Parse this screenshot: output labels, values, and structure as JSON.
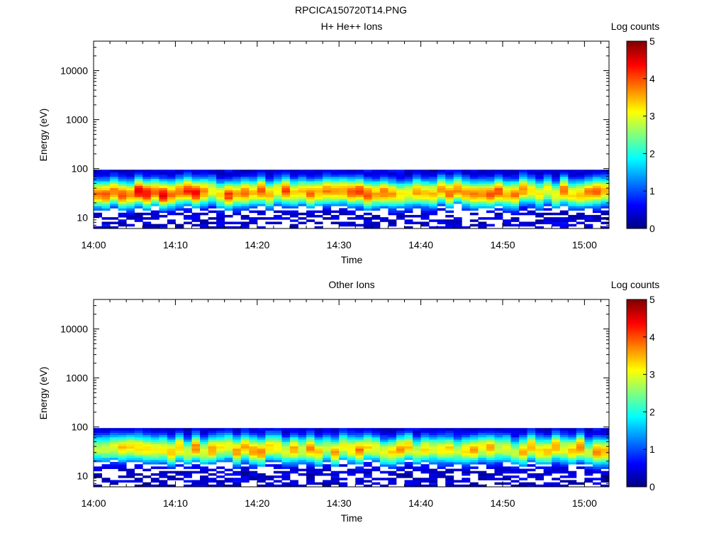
{
  "title": "RPCICA150720T14.PNG",
  "colorbar": {
    "label": "Log counts",
    "min": 0,
    "max": 5,
    "ticks": [
      "0",
      "1",
      "2",
      "3",
      "4",
      "5"
    ]
  },
  "time_ticks": [
    "14:00",
    "14:10",
    "14:20",
    "14:30",
    "14:40",
    "14:50",
    "15:00"
  ],
  "energy_ticks": [
    "10",
    "100",
    "1000",
    "10000"
  ],
  "chart_data": [
    {
      "type": "heatmap",
      "title": "H+ He++ Ions",
      "xlabel": "Time",
      "ylabel": "Energy (eV)",
      "xlim": [
        "14:00",
        "15:03"
      ],
      "ylim": [
        6,
        40000
      ],
      "yscale": "log",
      "energy_range_with_counts_eV": [
        6,
        95
      ],
      "peak_energy_eV": 33,
      "peak_log_counts": 4.2,
      "typical_peak_log_counts": 3.6,
      "colorbar_range": [
        0,
        5
      ]
    },
    {
      "type": "heatmap",
      "title": "Other Ions",
      "xlabel": "Time",
      "ylabel": "Energy (eV)",
      "xlim": [
        "14:00",
        "15:03"
      ],
      "ylim": [
        6,
        40000
      ],
      "yscale": "log",
      "energy_range_with_counts_eV": [
        6,
        95
      ],
      "peak_energy_eV": 35,
      "peak_log_counts": 4.2,
      "typical_peak_log_counts": 3.3,
      "colorbar_range": [
        0,
        5
      ]
    }
  ]
}
